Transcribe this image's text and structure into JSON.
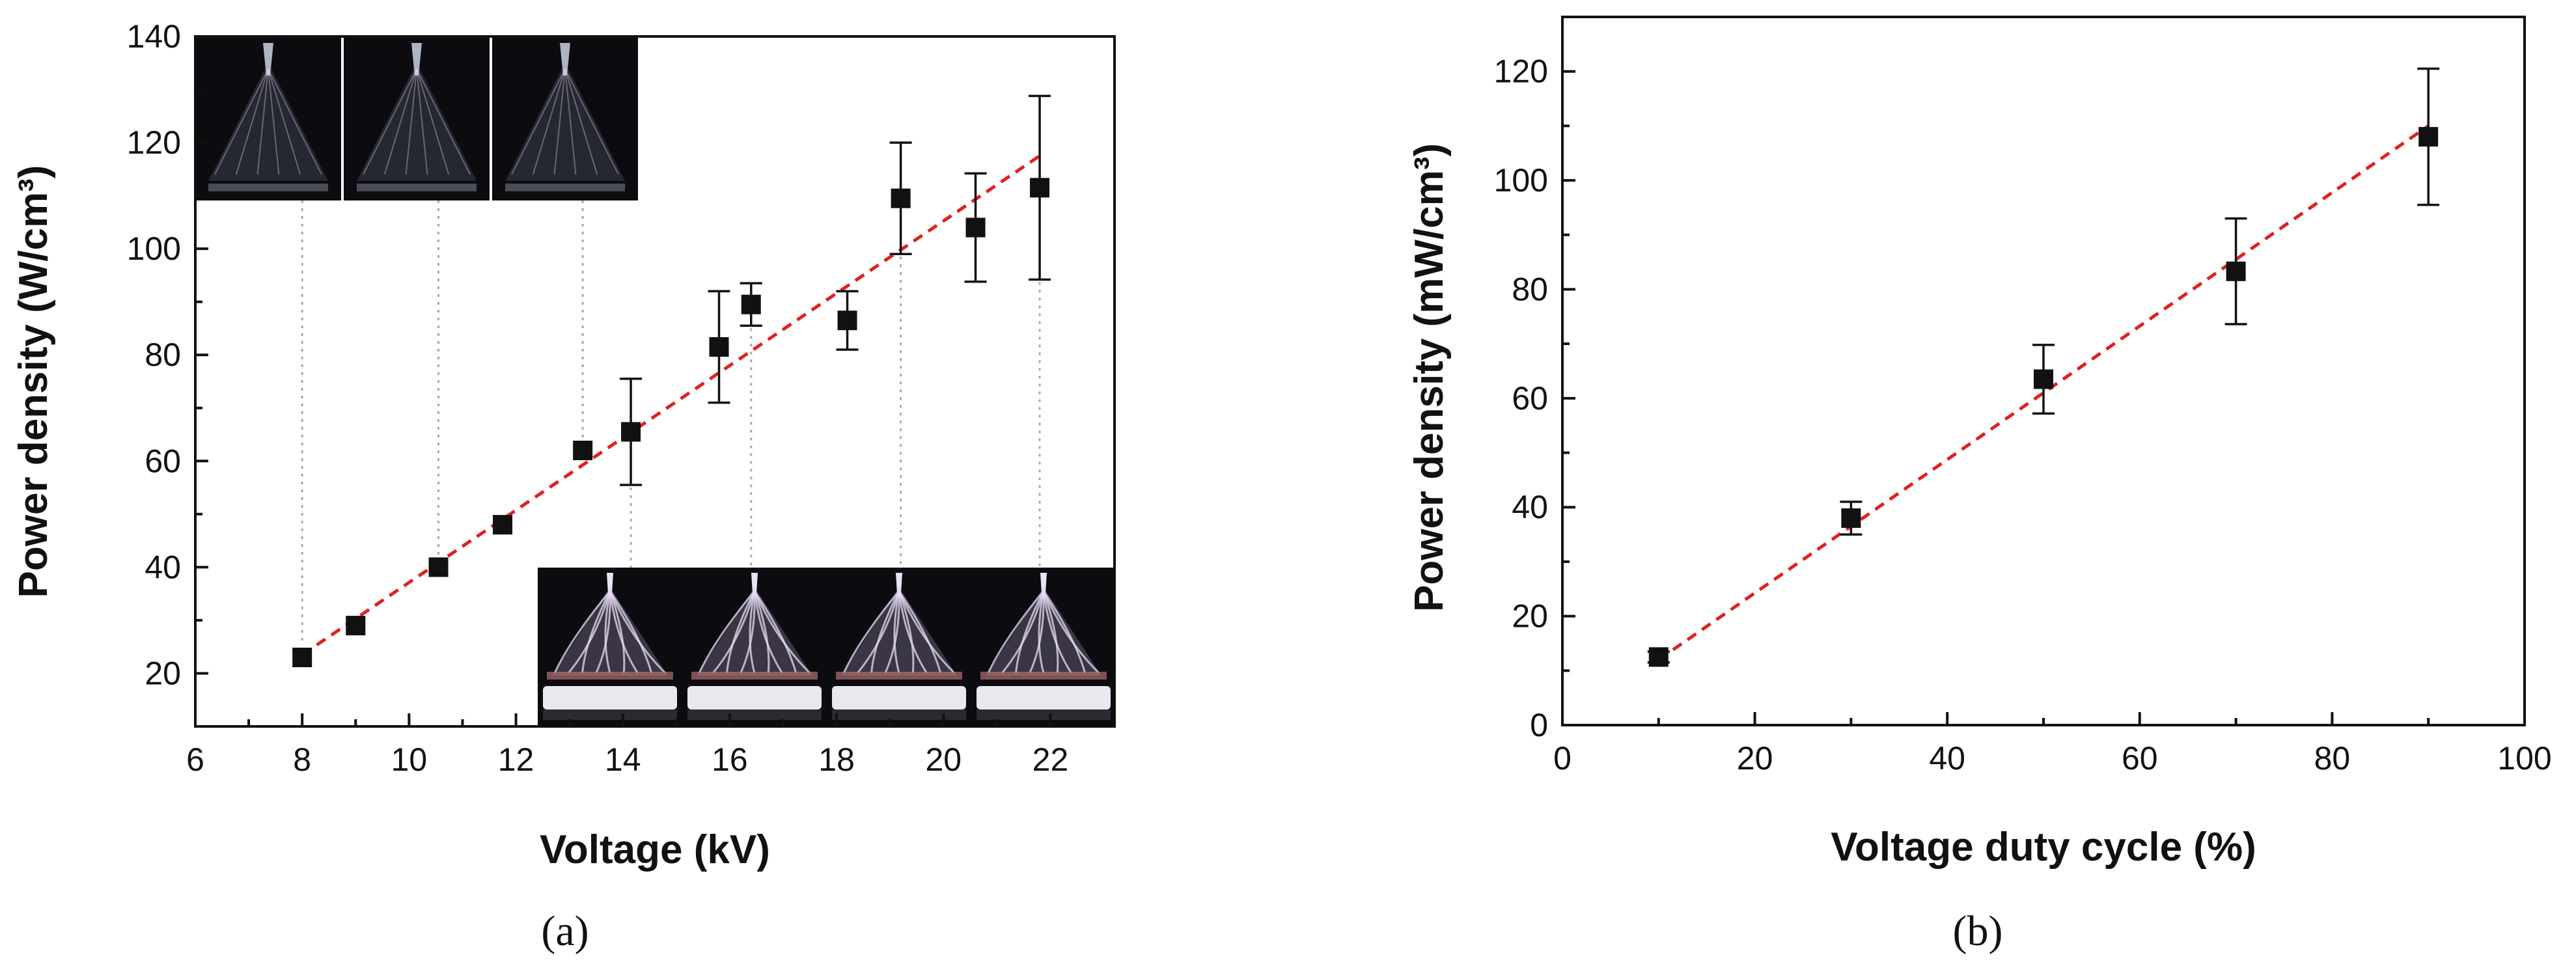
{
  "chart_data": [
    {
      "panel": "(a)",
      "type": "scatter",
      "xlabel": "Voltage (kV)",
      "ylabel": "Power density (W/cm³)",
      "xlim": [
        6,
        23.2
      ],
      "ylim": [
        10,
        140
      ],
      "xticks": [
        6,
        8,
        10,
        12,
        14,
        16,
        18,
        20,
        22
      ],
      "yticks": [
        20,
        40,
        60,
        80,
        100,
        120,
        140
      ],
      "points": [
        {
          "x": 8.0,
          "y": 23,
          "err": 0
        },
        {
          "x": 9.0,
          "y": 29,
          "err": 0
        },
        {
          "x": 10.55,
          "y": 40,
          "err": 0
        },
        {
          "x": 11.75,
          "y": 48,
          "err": 0
        },
        {
          "x": 13.25,
          "y": 62,
          "err": 0
        },
        {
          "x": 14.15,
          "y": 65.5,
          "err": 10
        },
        {
          "x": 15.8,
          "y": 81.5,
          "err": 10.5
        },
        {
          "x": 16.4,
          "y": 89.5,
          "err": 4
        },
        {
          "x": 18.2,
          "y": 86.5,
          "err": 5.5
        },
        {
          "x": 19.2,
          "y": 109.5,
          "err": 10.5
        },
        {
          "x": 20.6,
          "y": 104,
          "err": 10.2
        },
        {
          "x": 21.8,
          "y": 111.5,
          "err": 17.3
        }
      ],
      "fit_line": {
        "x": [
          8.0,
          21.8
        ],
        "y": [
          23.5,
          117.5
        ],
        "color": "#e02020",
        "style": "dashed"
      },
      "insets": {
        "top": {
          "count": 3,
          "linked_x": [
            8.0,
            10.55,
            13.25
          ],
          "description_hidden": true
        },
        "bottom": {
          "count": 4,
          "linked_x": [
            14.15,
            16.4,
            19.2,
            21.8
          ]
        }
      }
    },
    {
      "panel": "(b)",
      "type": "scatter",
      "xlabel": "Voltage duty cycle (%)",
      "ylabel": "Power density (mW/cm³)",
      "xlim": [
        0,
        100
      ],
      "ylim": [
        0,
        130
      ],
      "xticks": [
        0,
        20,
        40,
        60,
        80,
        100
      ],
      "yticks": [
        0,
        20,
        40,
        60,
        80,
        100,
        120
      ],
      "points": [
        {
          "x": 10,
          "y": 12.5,
          "err": 1
        },
        {
          "x": 30,
          "y": 38,
          "err": 3
        },
        {
          "x": 50,
          "y": 63.5,
          "err": 6.3
        },
        {
          "x": 70,
          "y": 83.3,
          "err": 9.7
        },
        {
          "x": 90,
          "y": 108,
          "err": 12.5
        }
      ],
      "fit_line": {
        "x": [
          10,
          90
        ],
        "y": [
          12,
          110
        ],
        "color": "#e02020",
        "style": "dashed"
      }
    }
  ],
  "colors": {
    "marker": "#111111",
    "fit": "#e02020",
    "guide": "#a8a8a8",
    "photo_bg": "#0b0b10",
    "plasma": "#e8dcf4"
  }
}
